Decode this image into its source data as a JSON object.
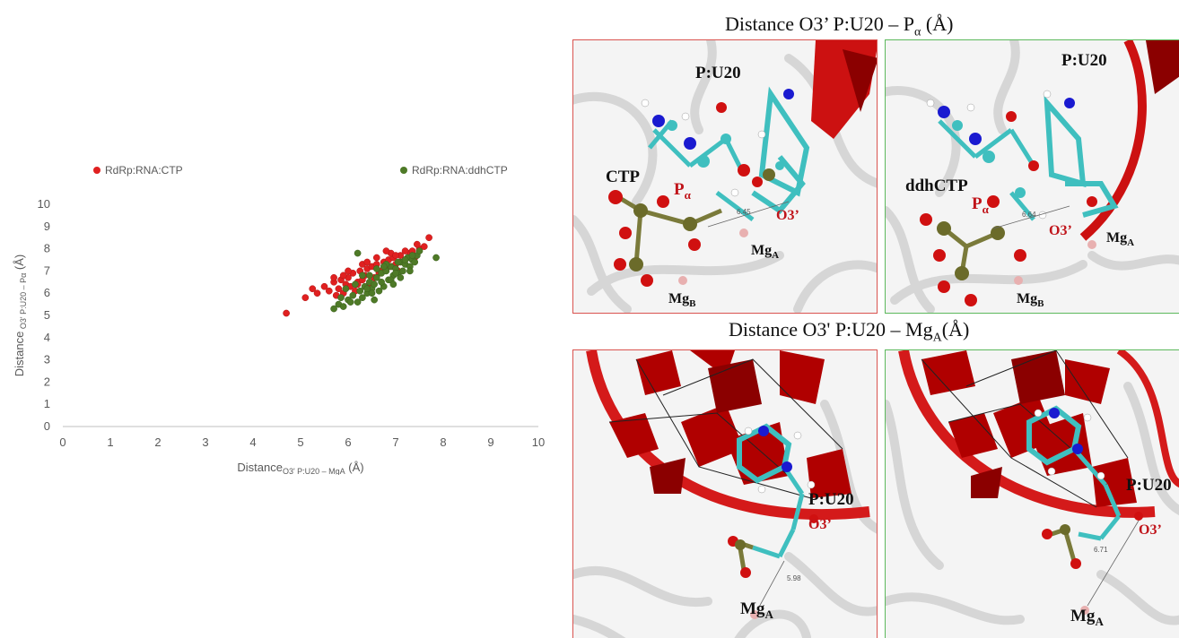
{
  "chart_data": {
    "type": "scatter",
    "xlim": [
      0,
      10
    ],
    "ylim": [
      0,
      10
    ],
    "xticks": [
      "0",
      "1",
      "2",
      "3",
      "4",
      "5",
      "6",
      "7",
      "8",
      "9",
      "10"
    ],
    "yticks": [
      "0",
      "1",
      "2",
      "3",
      "4",
      "5",
      "6",
      "7",
      "8",
      "9",
      "10"
    ],
    "xlabel": {
      "main": "Distance",
      "sub": "O3' P:U20 – MgA",
      "unit": "(Å)"
    },
    "ylabel": {
      "main": "Distance",
      "sub": "O3' P:U20 – Pα",
      "unit": "(Å)"
    },
    "grid": false,
    "legend_position": "top",
    "series": [
      {
        "name": "RdRp:RNA:CTP",
        "color": "#e02020",
        "x": [
          4.7,
          5.1,
          5.25,
          5.35,
          5.5,
          5.6,
          5.7,
          5.75,
          5.8,
          5.85,
          5.9,
          5.95,
          6.0,
          6.05,
          6.1,
          6.15,
          6.2,
          6.25,
          6.3,
          6.35,
          6.4,
          6.45,
          6.5,
          6.55,
          6.6,
          6.65,
          6.7,
          6.75,
          6.8,
          6.85,
          6.9,
          6.95,
          7.0,
          7.05,
          7.1,
          7.15,
          7.2,
          7.3,
          7.4,
          7.5,
          7.6,
          7.7,
          6.0,
          6.3,
          6.6,
          6.9,
          7.2,
          5.9,
          6.4,
          7.0,
          7.35,
          6.8,
          6.2,
          5.7,
          7.45
        ],
        "y": [
          5.1,
          5.8,
          6.2,
          6.0,
          6.3,
          6.1,
          6.5,
          5.9,
          6.2,
          6.6,
          6.0,
          6.4,
          6.7,
          6.3,
          6.9,
          6.1,
          6.5,
          7.0,
          6.6,
          6.8,
          7.1,
          6.4,
          7.2,
          6.7,
          7.3,
          6.9,
          7.0,
          7.4,
          7.1,
          7.5,
          7.2,
          7.6,
          7.3,
          7.0,
          7.7,
          7.4,
          7.5,
          7.8,
          7.6,
          8.0,
          8.1,
          8.5,
          7.0,
          7.3,
          7.6,
          7.8,
          7.9,
          6.8,
          7.4,
          7.7,
          7.9,
          7.9,
          6.4,
          6.7,
          8.2
        ]
      },
      {
        "name": "RdRp:RNA:ddhCTP",
        "color": "#4e7a27",
        "x": [
          5.7,
          5.8,
          5.9,
          6.0,
          6.1,
          6.2,
          6.25,
          6.3,
          6.35,
          6.4,
          6.45,
          6.5,
          6.55,
          6.6,
          6.65,
          6.7,
          6.75,
          6.8,
          6.85,
          6.9,
          6.95,
          7.0,
          7.05,
          7.1,
          7.15,
          7.2,
          7.25,
          7.3,
          7.35,
          7.4,
          7.45,
          7.5,
          7.85,
          6.2,
          5.95,
          6.05,
          6.5,
          6.7,
          6.9,
          7.1,
          7.3,
          6.3,
          6.6,
          6.8,
          7.0,
          7.2,
          5.85,
          6.15,
          6.45,
          6.75,
          7.05,
          7.35,
          6.4,
          6.95,
          6.55
        ],
        "y": [
          5.3,
          5.5,
          5.4,
          5.7,
          5.9,
          5.6,
          6.1,
          5.8,
          6.3,
          6.0,
          6.5,
          6.2,
          6.4,
          6.7,
          6.1,
          6.9,
          6.3,
          7.0,
          6.6,
          7.2,
          6.8,
          7.1,
          6.9,
          7.4,
          7.0,
          7.3,
          7.6,
          7.2,
          7.5,
          7.4,
          7.7,
          7.9,
          7.6,
          7.8,
          6.2,
          5.6,
          6.0,
          6.5,
          6.6,
          6.7,
          7.0,
          6.8,
          7.1,
          7.3,
          6.9,
          7.5,
          5.8,
          6.4,
          6.8,
          7.2,
          7.4,
          7.7,
          6.2,
          6.4,
          5.7
        ]
      }
    ]
  },
  "figure": {
    "top_title": {
      "text": "Distance O3’ P:U20 – P",
      "sub": "α",
      "unit": "(Å)"
    },
    "mid_title": {
      "text": "Distance O3' P:U20 – Mg",
      "sub": "A",
      "unit": "(Å)"
    },
    "panels": [
      {
        "id": "ctp-pa",
        "border": "#d9534f",
        "labels": {
          "res": "P:U20",
          "lig": "CTP",
          "pa": "P",
          "pa_sub": "α",
          "o3": "O3’",
          "mga": "Mg",
          "mga_sub": "A",
          "mgb": "Mg",
          "mgb_sub": "B",
          "dist": "6.45"
        }
      },
      {
        "id": "ddhctp-pa",
        "border": "#5cb85c",
        "labels": {
          "res": "P:U20",
          "lig": "ddhCTP",
          "pa": "P",
          "pa_sub": "α",
          "o3": "O3’",
          "mga": "Mg",
          "mga_sub": "A",
          "mgb": "Mg",
          "mgb_sub": "B",
          "dist": "6.64"
        }
      },
      {
        "id": "ctp-mg",
        "border": "#d9534f",
        "labels": {
          "res": "P:U20",
          "o3": "O3’",
          "mga": "Mg",
          "mga_sub": "A",
          "dist": "5.98"
        }
      },
      {
        "id": "ddhctp-mg",
        "border": "#5cb85c",
        "labels": {
          "res": "P:U20",
          "o3": "O3’",
          "mga": "Mg",
          "mga_sub": "A",
          "dist": "6.71"
        }
      }
    ]
  }
}
